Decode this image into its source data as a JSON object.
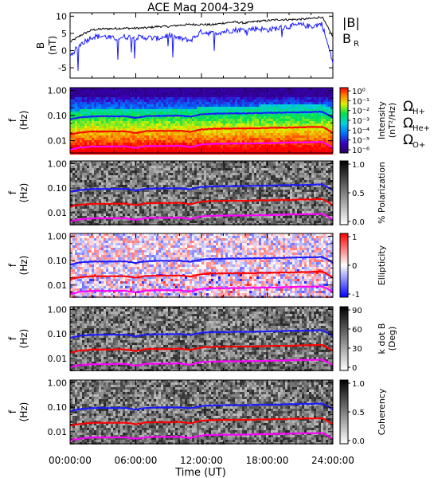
{
  "title": "ACE Mag 2004-329",
  "xaxis": {
    "label": "Time (UT)",
    "ticks": [
      "00:00:00",
      "06:00:00",
      "12:00:00",
      "18:00:00",
      "24:00:00"
    ],
    "range_hours": [
      0,
      24
    ]
  },
  "legend": {
    "b_total": "|B|",
    "b_r": "B",
    "b_r_sub": "R",
    "omega_h": "Ω",
    "omega_h_sub": "H+",
    "omega_he": "Ω",
    "omega_he_sub": "He+",
    "omega_o": "Ω",
    "omega_o_sub": "O+"
  },
  "colors": {
    "b_total": "#000000",
    "b_r": "#1a1aff",
    "omega_h": "#1a1aff",
    "omega_he": "#ff0000",
    "omega_o": "#ff00ff"
  },
  "freq_ticks": [
    "1.00",
    "0.10",
    "0.01"
  ],
  "chart_data": [
    {
      "type": "line",
      "panel": "magnetic-field",
      "ylabel": "B",
      "ylabel_unit": "(nT)",
      "ylim": [
        -8,
        11
      ],
      "yticks": [
        "10",
        "5",
        "0",
        "-5"
      ],
      "x_hours": [
        0,
        1,
        2,
        3,
        4,
        5,
        6,
        7,
        8,
        9,
        10,
        11,
        12,
        13,
        14,
        15,
        16,
        17,
        18,
        19,
        20,
        21,
        22,
        23,
        24
      ],
      "series": [
        {
          "name": "|B|",
          "values": [
            2.5,
            4.5,
            6.0,
            6.3,
            6.4,
            6.5,
            6.5,
            6.6,
            7.0,
            7.0,
            7.4,
            7.6,
            7.6,
            7.5,
            8.0,
            8.3,
            8.0,
            8.5,
            8.7,
            9.0,
            9.0,
            9.1,
            9.3,
            9.8,
            4.0
          ]
        },
        {
          "name": "B R",
          "values": [
            -1.5,
            2.0,
            4.0,
            4.2,
            3.5,
            4.0,
            3.8,
            3.8,
            3.5,
            4.5,
            3.5,
            3.0,
            5.5,
            5.0,
            5.5,
            6.0,
            6.0,
            6.5,
            6.0,
            6.5,
            7.0,
            7.5,
            7.0,
            7.8,
            -3.5
          ]
        }
      ]
    },
    {
      "type": "heatmap",
      "panel": "wave-power",
      "ylabel": "f",
      "ylabel_unit": "(Hz)",
      "colorbar_label": "Intensity",
      "colorbar_unit": "(nT²/Hz)",
      "colorbar_ticks": [
        "10⁰",
        "10⁻¹",
        "10⁻²",
        "10⁻³",
        "10⁻⁴",
        "10⁻⁵",
        "10⁻⁶"
      ],
      "colorscale": "rainbow"
    },
    {
      "type": "heatmap",
      "panel": "polarization",
      "ylabel": "f",
      "ylabel_unit": "(Hz)",
      "colorbar_label": "% Polarization",
      "colorbar_ticks": [
        "1.0",
        "0.5",
        "0.0"
      ],
      "colorscale": "grayscale"
    },
    {
      "type": "heatmap",
      "panel": "ellipticity",
      "ylabel": "f",
      "ylabel_unit": "(Hz)",
      "colorbar_label": "Ellipticity",
      "colorbar_ticks": [
        "1",
        "0",
        "-1"
      ],
      "colorscale": "blue-white-red"
    },
    {
      "type": "heatmap",
      "panel": "wave-normal-angle",
      "ylabel": "f",
      "ylabel_unit": "(Hz)",
      "colorbar_label": "k dot B",
      "colorbar_unit": "(Deg)",
      "colorbar_ticks": [
        "90",
        "60",
        "30",
        "0"
      ],
      "colorscale": "grayscale"
    },
    {
      "type": "heatmap",
      "panel": "coherency",
      "ylabel": "f",
      "ylabel_unit": "(Hz)",
      "colorbar_label": "Coherency",
      "colorbar_ticks": [
        "1.0",
        "0.5",
        "0.0"
      ],
      "colorscale": "grayscale"
    },
    {
      "type": "line",
      "panel": "gyrofrequency-overlay",
      "x_hours": [
        0,
        1,
        2,
        3,
        4,
        5,
        6,
        7,
        8,
        9,
        10,
        11,
        12,
        13,
        14,
        15,
        16,
        17,
        18,
        19,
        20,
        21,
        22,
        23,
        24
      ],
      "series": [
        {
          "name": "H+",
          "values": [
            0.07,
            0.085,
            0.092,
            0.093,
            0.093,
            0.094,
            0.08,
            0.095,
            0.097,
            0.097,
            0.099,
            0.09,
            0.112,
            0.118,
            0.12,
            0.122,
            0.122,
            0.125,
            0.127,
            0.13,
            0.133,
            0.135,
            0.138,
            0.142,
            0.08
          ]
        },
        {
          "name": "He+",
          "values": [
            0.0175,
            0.021,
            0.023,
            0.023,
            0.023,
            0.0235,
            0.02,
            0.024,
            0.0243,
            0.0243,
            0.025,
            0.022,
            0.028,
            0.0295,
            0.03,
            0.0305,
            0.0305,
            0.031,
            0.032,
            0.0325,
            0.033,
            0.034,
            0.0345,
            0.0355,
            0.02
          ]
        },
        {
          "name": "O+",
          "values": [
            0.0044,
            0.0053,
            0.0058,
            0.0058,
            0.0058,
            0.0059,
            0.005,
            0.006,
            0.0061,
            0.0061,
            0.0062,
            0.0055,
            0.007,
            0.0074,
            0.0075,
            0.0076,
            0.0076,
            0.0078,
            0.0079,
            0.0081,
            0.0083,
            0.0085,
            0.0086,
            0.0089,
            0.005
          ]
        }
      ]
    }
  ]
}
